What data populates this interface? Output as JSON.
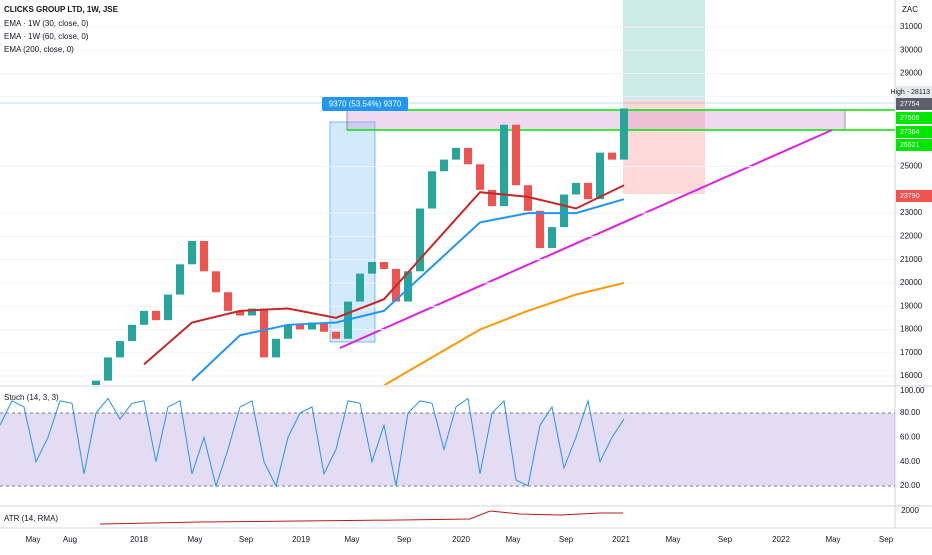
{
  "legend": {
    "symbol": "CLICKS GROUP LTD, 1W, JSE",
    "ema30": "EMA · 1W (30, close, 0)",
    "ema60": "EMA · 1W (60, close, 0)",
    "ema200": "EMA (200, close, 0)"
  },
  "currency": "ZAC",
  "measure_label": "9370 (53.54%) 9370",
  "price_axis": {
    "ylim": [
      15600,
      31000
    ],
    "ticks": [
      31000,
      30000,
      29000,
      28000,
      25000,
      23000,
      22000,
      21000,
      20000,
      19000,
      18000,
      17000,
      16000
    ]
  },
  "price_tags": [
    {
      "label": "High - 28113",
      "color": "#e8eaee"
    },
    {
      "label": "27754",
      "color": "#5d606b"
    },
    {
      "label": "27609",
      "color": "#00e600"
    },
    {
      "label": "27364",
      "color": "#00e600"
    },
    {
      "label": "26521",
      "color": "#00e600"
    },
    {
      "label": "23790",
      "color": "#ef5350"
    }
  ],
  "price": {
    "closes": [
      14200,
      14500,
      14800,
      14600,
      15000,
      15200,
      15100,
      15400,
      15800,
      16800,
      17500,
      18200,
      18800,
      18400,
      19500,
      20800,
      21800,
      20500,
      19600,
      18800,
      18600,
      18900,
      16800,
      17600,
      18200,
      18000,
      18300,
      17900,
      17600,
      19200,
      20400,
      20900,
      20600,
      19200,
      20500,
      23200,
      24800,
      25300,
      25800,
      25100,
      24000,
      23300,
      26800,
      24200,
      23100,
      21500,
      22400,
      23800,
      24300,
      23600,
      25600,
      25300,
      27500
    ],
    "up_color": "#26a69a",
    "down_color": "#ef5350"
  },
  "ema": [
    {
      "name": "ema30",
      "color": "#c62828",
      "values": [
        null,
        null,
        null,
        16500,
        18300,
        18800,
        18900,
        18500,
        19300,
        21600,
        23900,
        23700,
        23200,
        24200
      ]
    },
    {
      "name": "ema60",
      "color": "#2196f3",
      "values": [
        null,
        null,
        null,
        null,
        15800,
        17750,
        18200,
        18300,
        18800,
        20700,
        22600,
        23000,
        23000,
        23600
      ]
    },
    {
      "name": "ema200",
      "color": "#ff9800",
      "values": [
        null,
        null,
        null,
        null,
        null,
        null,
        null,
        null,
        15600,
        16800,
        18000,
        18800,
        19500,
        20000
      ]
    }
  ],
  "stoch": {
    "label": "Stoch (14, 3, 3)",
    "color": "#2196f3",
    "ticks": [
      {
        "value": 100,
        "label": "100.00"
      },
      {
        "value": 80,
        "label": "80.00"
      },
      {
        "value": 60,
        "label": "60.00"
      },
      {
        "value": 40,
        "label": "40.00"
      },
      {
        "value": 20,
        "label": "20.00"
      }
    ],
    "k": [
      70,
      90,
      85,
      40,
      60,
      90,
      88,
      30,
      80,
      92,
      75,
      88,
      90,
      40,
      85,
      90,
      30,
      60,
      20,
      50,
      85,
      90,
      40,
      20,
      60,
      80,
      85,
      30,
      50,
      90,
      88,
      40,
      70,
      20,
      80,
      90,
      88,
      50,
      85,
      92,
      30,
      80,
      90,
      25,
      20,
      70,
      85,
      35,
      60,
      90,
      40,
      60,
      75
    ]
  },
  "atr": {
    "label": "ATR (14, RMA)",
    "tick": "2000"
  },
  "time_axis": [
    "May",
    "Aug",
    "2018",
    "May",
    "Sep",
    "2019",
    "May",
    "Sep",
    "2020",
    "May",
    "Sep",
    "2021",
    "May",
    "Sep",
    "2022",
    "May",
    "Sep"
  ]
}
